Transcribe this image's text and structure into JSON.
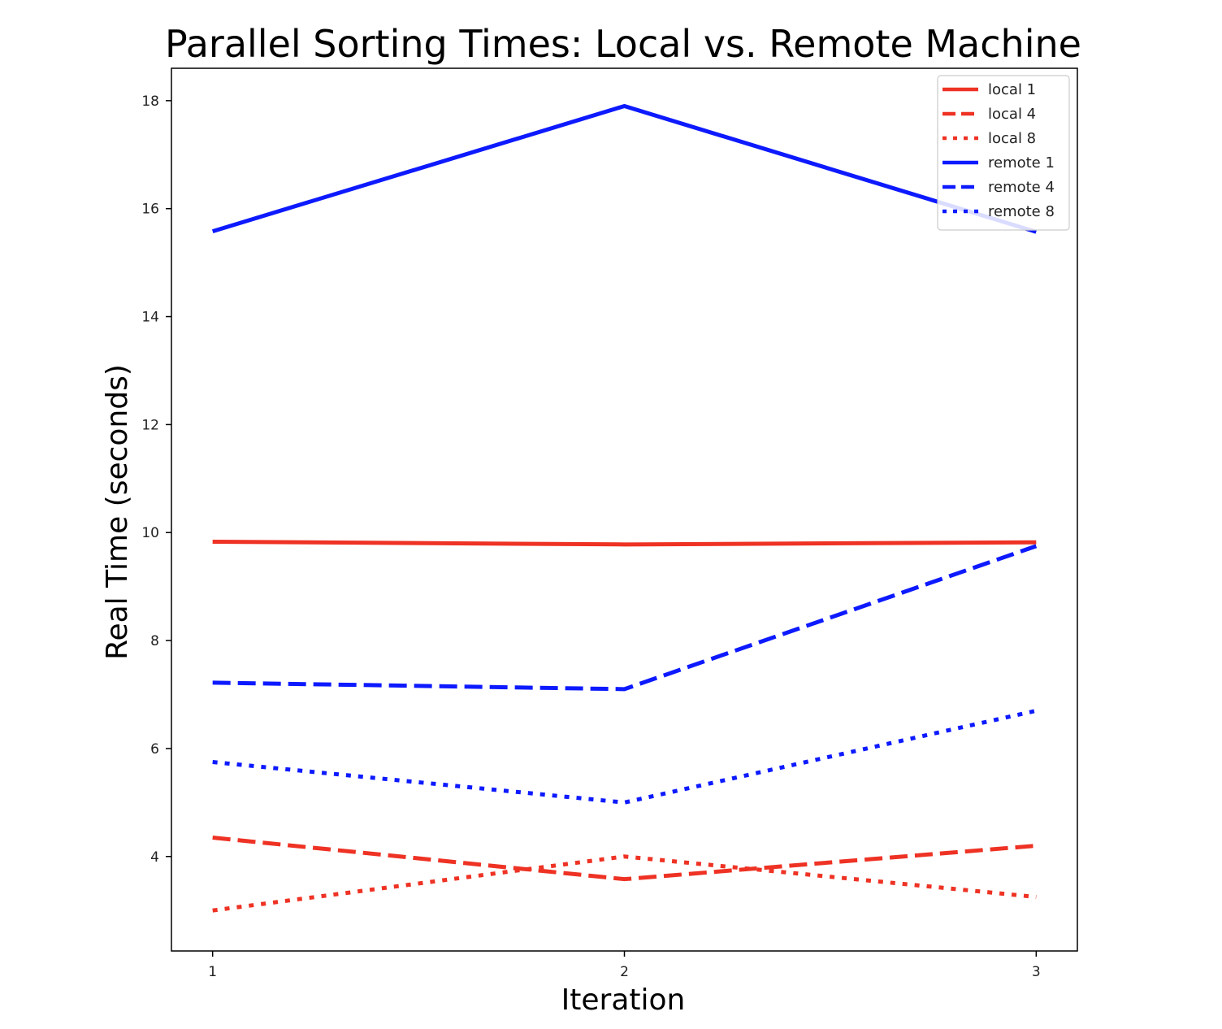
{
  "chart_data": {
    "type": "line",
    "title": "Parallel Sorting Times: Local vs. Remote Machine",
    "xlabel": "Iteration",
    "ylabel": "Real Time (seconds)",
    "x": [
      1,
      2,
      3
    ],
    "x_ticks": [
      1,
      2,
      3
    ],
    "y_ticks": [
      4,
      6,
      8,
      10,
      12,
      14,
      16,
      18
    ],
    "xlim": [
      0.9,
      3.1
    ],
    "ylim": [
      2.25,
      18.6
    ],
    "grid": false,
    "legend_position": "top-right",
    "series": [
      {
        "name": "local 1",
        "values": [
          9.83,
          9.78,
          9.82
        ],
        "color": "#ee3224",
        "dash": "solid"
      },
      {
        "name": "local 4",
        "values": [
          4.35,
          3.58,
          4.2
        ],
        "color": "#ee3224",
        "dash": "dashed"
      },
      {
        "name": "local 8",
        "values": [
          3.0,
          4.0,
          3.25
        ],
        "color": "#ee3224",
        "dash": "dotted"
      },
      {
        "name": "remote 1",
        "values": [
          15.58,
          17.9,
          15.57
        ],
        "color": "#0d1aff",
        "dash": "solid"
      },
      {
        "name": "remote 4",
        "values": [
          7.22,
          7.1,
          9.75
        ],
        "color": "#0d1aff",
        "dash": "dashed"
      },
      {
        "name": "remote 8",
        "values": [
          5.75,
          5.0,
          6.7
        ],
        "color": "#0d1aff",
        "dash": "dotted"
      }
    ]
  }
}
